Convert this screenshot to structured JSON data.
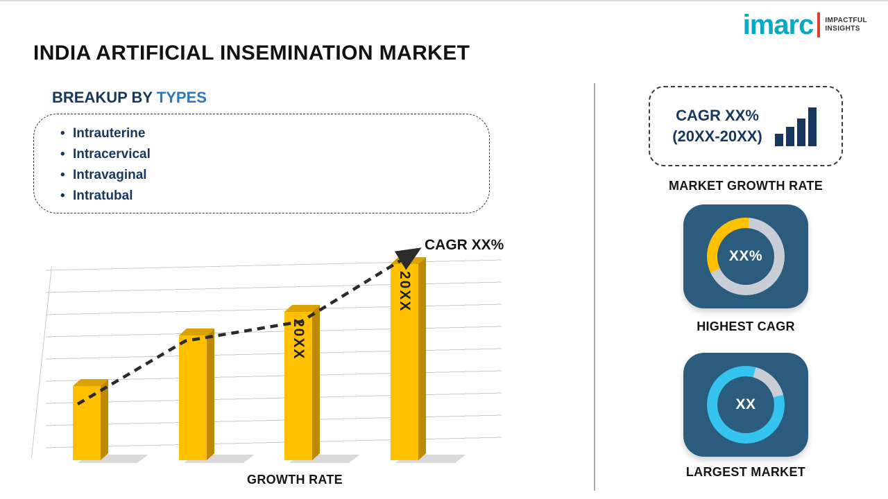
{
  "colors": {
    "yellow": "#FFC000",
    "yellow-dark": "#C08A00",
    "cyan": "#35C4F0",
    "ring-gray": "#C9CED6",
    "tile": "#2B5C7D",
    "navy": "#17375E",
    "blue": "#2E78C2",
    "brand-teal": "#0AA9C2",
    "brand-red": "#E03C31"
  },
  "header": {
    "title": "INDIA ARTIFICIAL INSEMINATION MARKET",
    "logo": {
      "brand": "imarc",
      "tagline_top": "IMPACTFUL",
      "tagline_bottom": "INSIGHTS"
    }
  },
  "breakup": {
    "heading_prefix": "BREAKUP BY ",
    "heading_highlight": "TYPES",
    "items": [
      "Intrauterine",
      "Intracervical",
      "Intravaginal",
      "Intratubal"
    ]
  },
  "chart_data": {
    "type": "bar",
    "title": "GROWTH RATE",
    "categories": [
      "",
      "",
      "20XX",
      "20XX"
    ],
    "values": [
      25,
      42,
      50,
      66
    ],
    "ylim": [
      0,
      70
    ],
    "bar_color": "#FFC000",
    "bar_labels": [
      "",
      "",
      "20XX",
      "20XX"
    ],
    "xlabel": "GROWTH RATE",
    "ylabel": "",
    "grid": true,
    "legend": false,
    "trend": {
      "label": "CAGR XX%",
      "style": "dashed-arrow-ascending"
    }
  },
  "right_panel": {
    "cagr_box": {
      "line1": "CAGR XX%",
      "line2": "(20XX-20XX)"
    },
    "growth_label": "MARKET GROWTH RATE",
    "highest_cagr": {
      "value": "XX%",
      "label": "HIGHEST CAGR"
    },
    "largest_market": {
      "value": "XX",
      "label": "LARGEST MARKET"
    }
  }
}
